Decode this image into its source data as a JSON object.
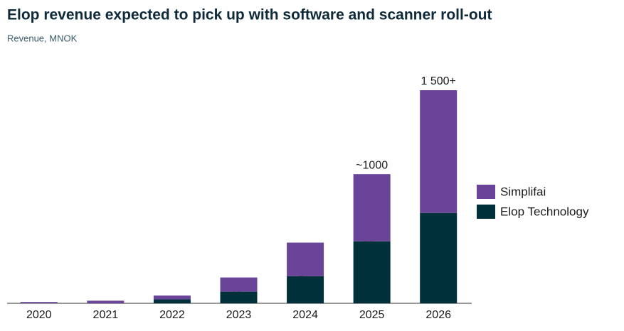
{
  "chart_data": {
    "type": "stacked_bar",
    "title": "Elop revenue expected to pick up with software and scanner roll-out",
    "subtitle": "Revenue, MNOK",
    "categories": [
      "2020",
      "2021",
      "2022",
      "2023",
      "2024",
      "2025",
      "2026"
    ],
    "series": [
      {
        "name": "Elop Technology",
        "color": "#00303a",
        "values": [
          0,
          0,
          30,
          90,
          210,
          480,
          700
        ]
      },
      {
        "name": "Simplifai",
        "color": "#6a4499",
        "values": [
          10,
          20,
          30,
          110,
          260,
          520,
          950
        ]
      }
    ],
    "annotations": [
      {
        "category": "2025",
        "text": "~1000"
      },
      {
        "category": "2026",
        "text": "1 500+"
      }
    ]
  }
}
